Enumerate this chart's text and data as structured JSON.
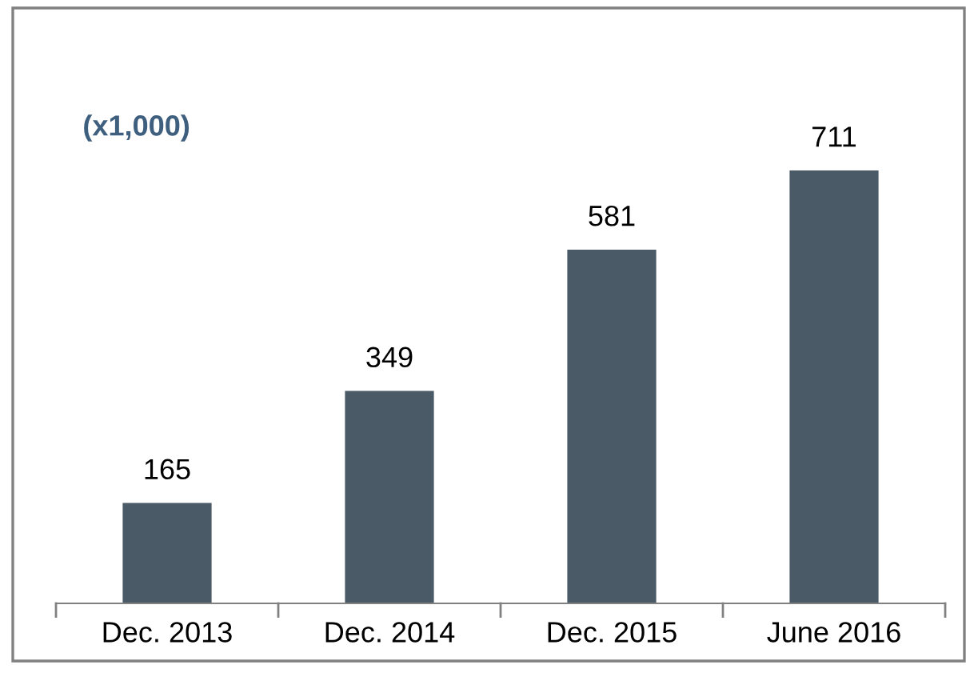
{
  "chart_data": {
    "type": "bar",
    "categories": [
      "Dec. 2013",
      "Dec. 2014",
      "Dec. 2015",
      "June 2016"
    ],
    "values": [
      165,
      349,
      581,
      711
    ],
    "color": "#4a5a66",
    "data_labels": true,
    "annotations": [
      "(x1,000)"
    ]
  }
}
